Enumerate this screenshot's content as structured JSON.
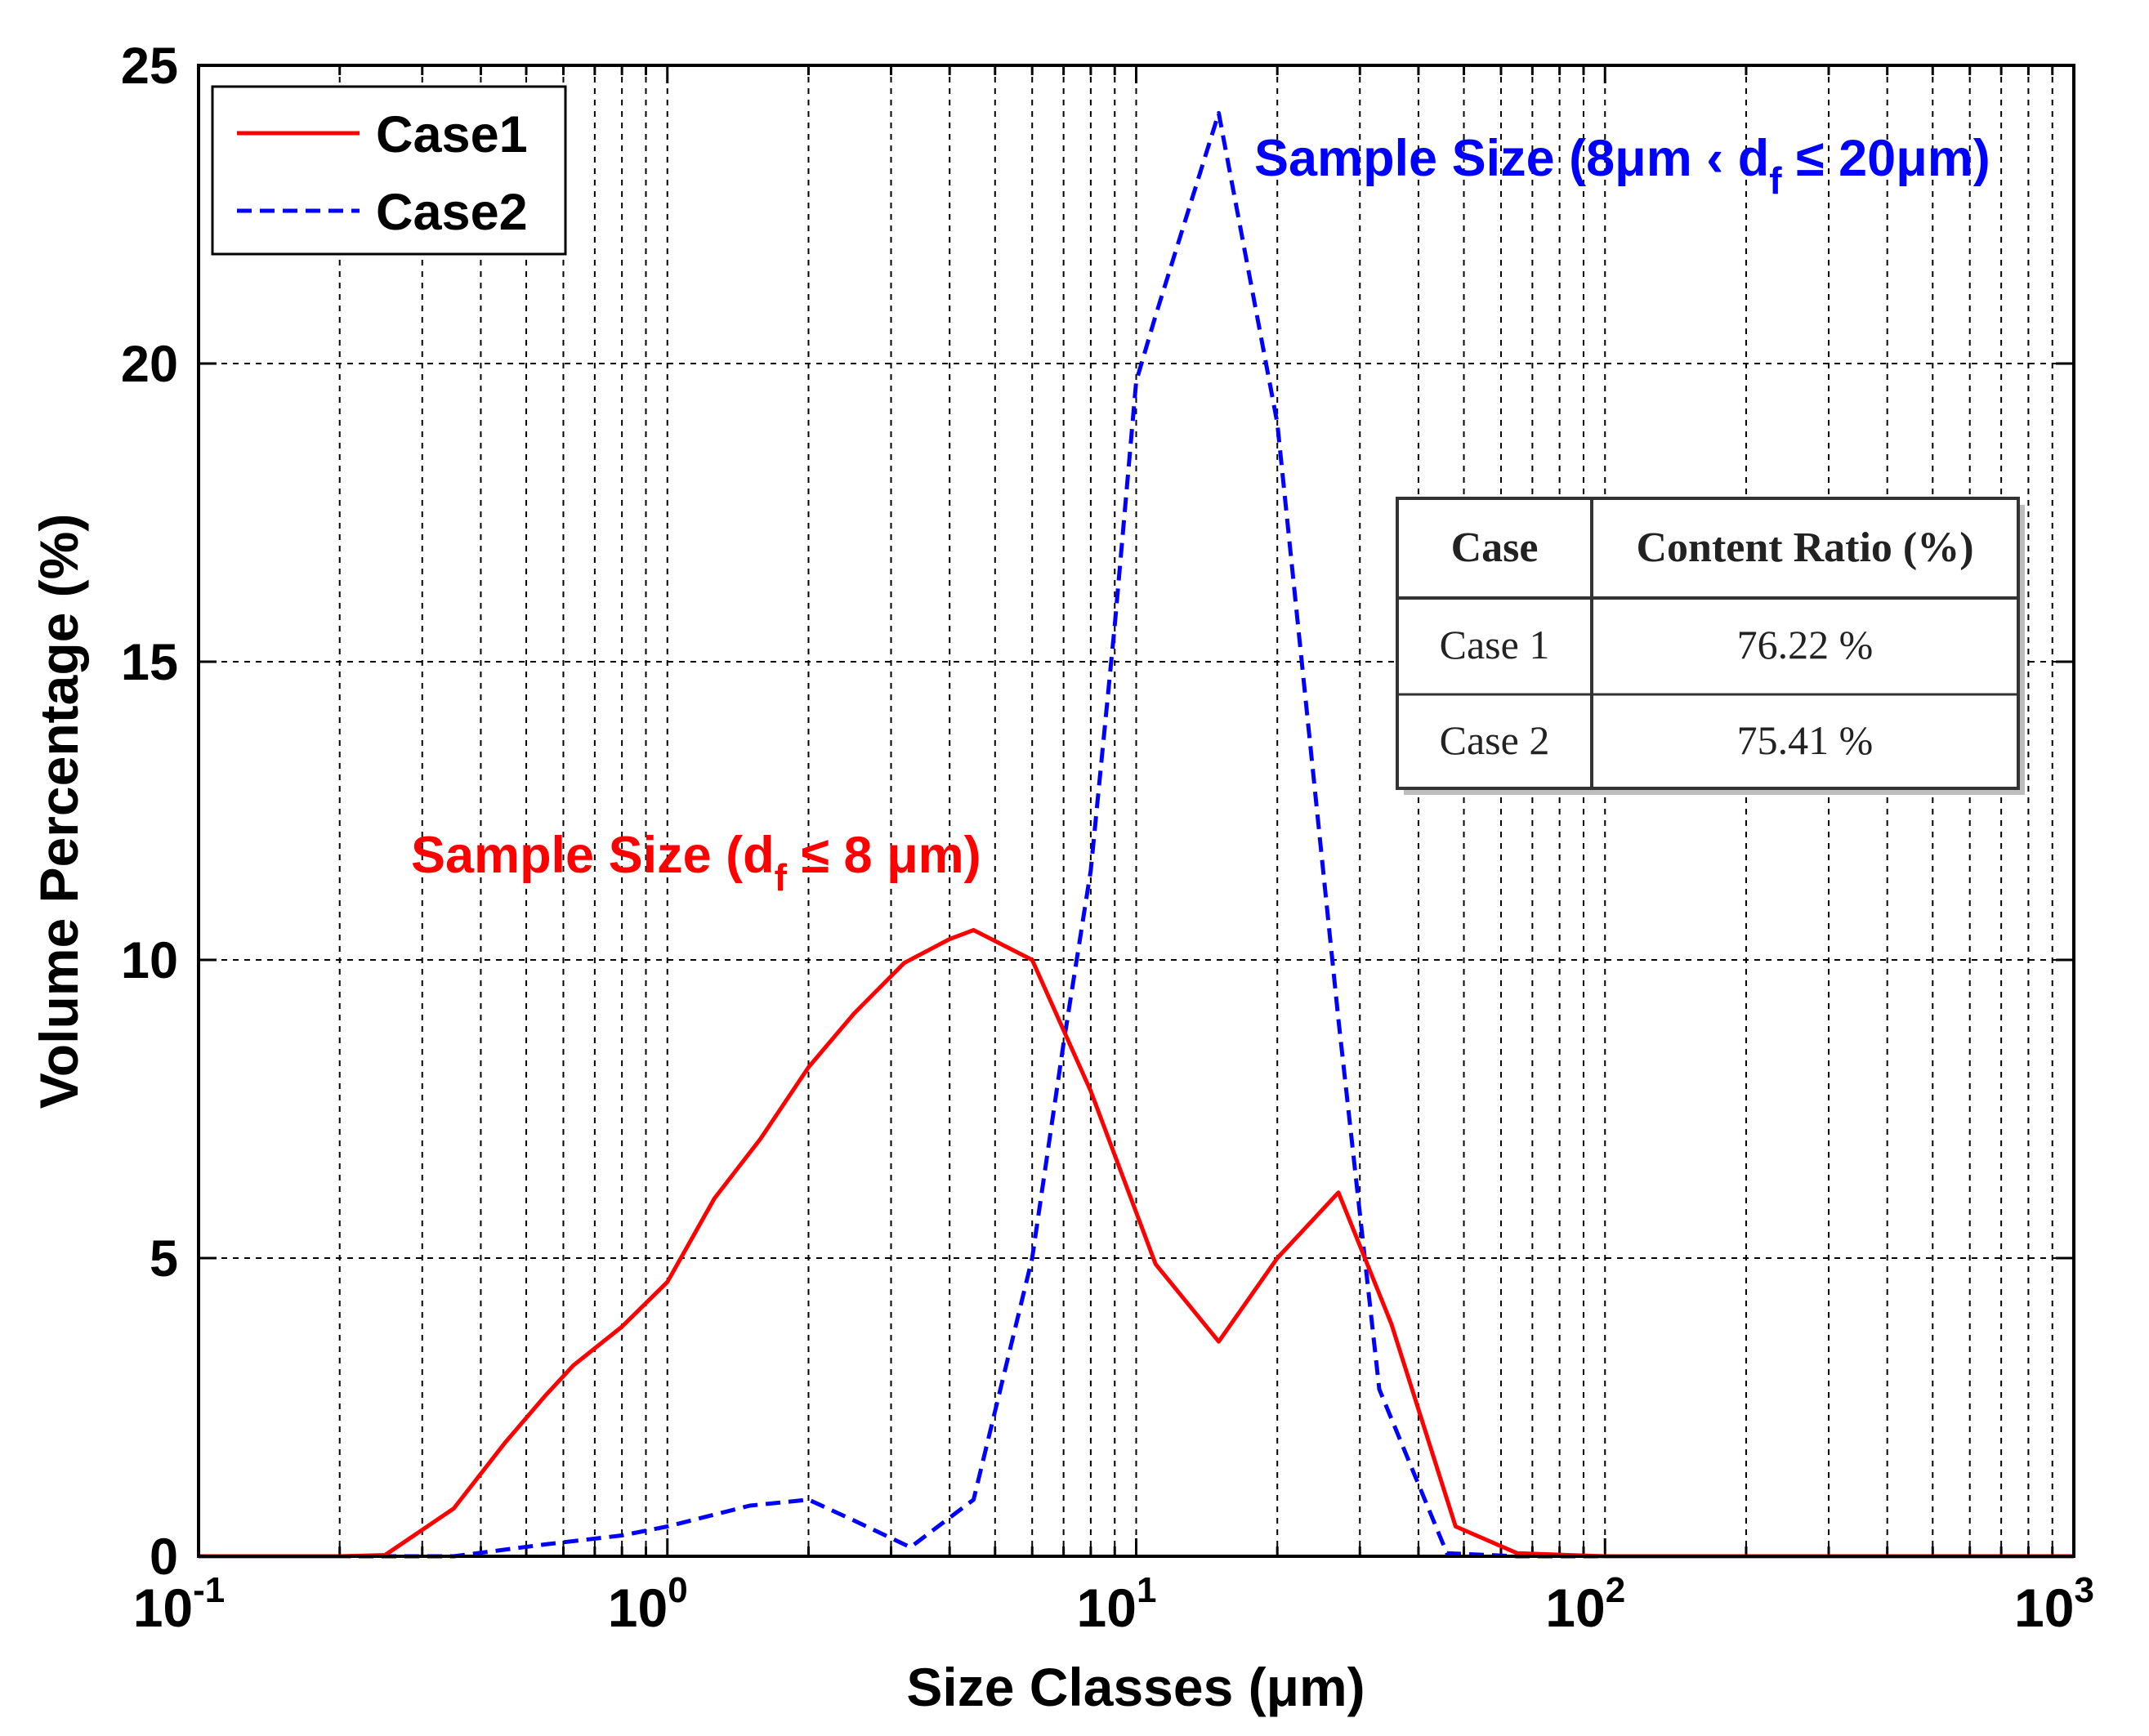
{
  "chart_data": {
    "type": "line",
    "x_scale": "log",
    "xlim": [
      0.1,
      1000
    ],
    "ylim": [
      0,
      25
    ],
    "grid": true,
    "xlabel": "Size Classes (μm)",
    "ylabel": "Volume Percentage (%)",
    "x_ticks": [
      {
        "value": 0.1,
        "base": "10",
        "exp": "-1"
      },
      {
        "value": 1,
        "base": "10",
        "exp": "0"
      },
      {
        "value": 10,
        "base": "10",
        "exp": "1"
      },
      {
        "value": 100,
        "base": "10",
        "exp": "2"
      },
      {
        "value": 1000,
        "base": "10",
        "exp": "3"
      }
    ],
    "y_ticks": [
      {
        "value": 0,
        "label": "0"
      },
      {
        "value": 5,
        "label": "5"
      },
      {
        "value": 10,
        "label": "10"
      },
      {
        "value": 15,
        "label": "15"
      },
      {
        "value": 20,
        "label": "20"
      },
      {
        "value": 25,
        "label": "25"
      }
    ],
    "legend": {
      "position": "top-left"
    },
    "series": [
      {
        "name": "Case1",
        "color": "#ff0000",
        "style": "solid",
        "points": [
          [
            0.1,
            0
          ],
          [
            0.2,
            0
          ],
          [
            0.25,
            0.02
          ],
          [
            0.35,
            0.8
          ],
          [
            0.45,
            1.9
          ],
          [
            0.55,
            2.7
          ],
          [
            0.63,
            3.2
          ],
          [
            0.8,
            3.85
          ],
          [
            1.0,
            4.6
          ],
          [
            1.26,
            6.0
          ],
          [
            1.58,
            7.0
          ],
          [
            2.0,
            8.2
          ],
          [
            2.5,
            9.1
          ],
          [
            3.2,
            9.95
          ],
          [
            4.0,
            10.35
          ],
          [
            4.5,
            10.5
          ],
          [
            6.0,
            10.0
          ],
          [
            8.0,
            7.8
          ],
          [
            11.0,
            4.9
          ],
          [
            15.0,
            3.6
          ],
          [
            20.0,
            5.0
          ],
          [
            27.0,
            6.1
          ],
          [
            35.0,
            3.9
          ],
          [
            48.0,
            0.5
          ],
          [
            65.0,
            0.05
          ],
          [
            100,
            0
          ],
          [
            1000,
            0
          ]
        ]
      },
      {
        "name": "Case2",
        "color": "#0000ff",
        "style": "dashed",
        "points": [
          [
            0.1,
            0
          ],
          [
            0.35,
            0
          ],
          [
            0.55,
            0.2
          ],
          [
            0.8,
            0.35
          ],
          [
            1.0,
            0.5
          ],
          [
            1.5,
            0.85
          ],
          [
            2.0,
            0.95
          ],
          [
            2.5,
            0.6
          ],
          [
            3.3,
            0.15
          ],
          [
            4.5,
            0.95
          ],
          [
            6.0,
            5.0
          ],
          [
            7.0,
            8.6
          ],
          [
            8.0,
            11.5
          ],
          [
            9.0,
            15.6
          ],
          [
            10.0,
            19.7
          ],
          [
            11.0,
            20.8
          ],
          [
            15.0,
            24.2
          ],
          [
            20.0,
            19.0
          ],
          [
            27.0,
            9.0
          ],
          [
            33.0,
            2.8
          ],
          [
            46.0,
            0.05
          ],
          [
            65.0,
            0
          ],
          [
            1000,
            0
          ]
        ]
      }
    ],
    "annotations": [
      {
        "id": "case2-note",
        "prefix": "Sample Size (8μm ‹ d",
        "sub": "f",
        "suffix": " ≤ 20μm)",
        "color": "#0000ff"
      },
      {
        "id": "case1-note",
        "prefix": "Sample Size (d",
        "sub": "f",
        "suffix": " ≤ 8 μm)",
        "color": "#ff0000"
      }
    ],
    "table": {
      "headers": [
        "Case",
        "Content Ratio (%)"
      ],
      "rows": [
        [
          "Case 1",
          "76.22 %"
        ],
        [
          "Case 2",
          "75.41 %"
        ]
      ]
    }
  }
}
